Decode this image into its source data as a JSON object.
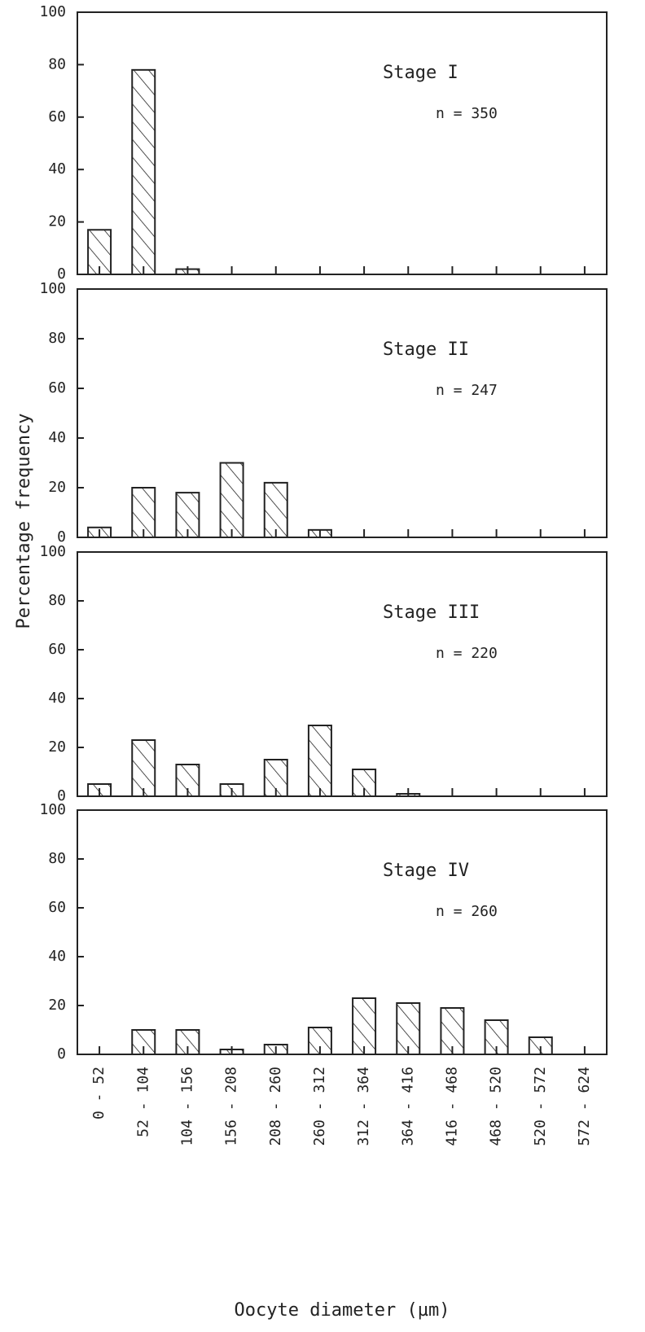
{
  "figure": {
    "ylabel": "Percentage frequency",
    "xlabel": "Oocyte diameter (µm)",
    "categories": [
      "0 - 52",
      "52 - 104",
      "104 - 156",
      "156 - 208",
      "208 - 260",
      "260 - 312",
      "312 - 364",
      "364 - 416",
      "416 - 468",
      "468 - 520",
      "520 - 572",
      "572 - 624"
    ]
  },
  "chart_data": [
    {
      "type": "bar",
      "title": "Stage I",
      "annotation": "n = 350",
      "values": [
        17,
        78,
        2,
        0,
        0,
        0,
        0,
        0,
        0,
        0,
        0,
        0
      ],
      "color": "#222222",
      "ylim": [
        0,
        100
      ],
      "yticks": [
        0,
        20,
        40,
        60,
        80,
        100
      ]
    },
    {
      "type": "bar",
      "title": "Stage II",
      "annotation": "n = 247",
      "values": [
        4,
        20,
        18,
        30,
        22,
        3,
        0,
        0,
        0,
        0,
        0,
        0
      ],
      "color": "#222222",
      "ylim": [
        0,
        100
      ],
      "yticks": [
        0,
        20,
        40,
        60,
        80,
        100
      ]
    },
    {
      "type": "bar",
      "title": "Stage III",
      "annotation": "n = 220",
      "values": [
        5,
        23,
        13,
        5,
        15,
        29,
        11,
        1,
        0,
        0,
        0,
        0
      ],
      "color": "#222222",
      "ylim": [
        0,
        100
      ],
      "yticks": [
        0,
        20,
        40,
        60,
        80,
        100
      ]
    },
    {
      "type": "bar",
      "title": "Stage IV",
      "annotation": "n = 260",
      "values": [
        0,
        10,
        10,
        2,
        4,
        11,
        23,
        21,
        19,
        14,
        7,
        0
      ],
      "color": "#222222",
      "ylim": [
        0,
        100
      ],
      "yticks": [
        0,
        20,
        40,
        60,
        80,
        100
      ]
    }
  ]
}
